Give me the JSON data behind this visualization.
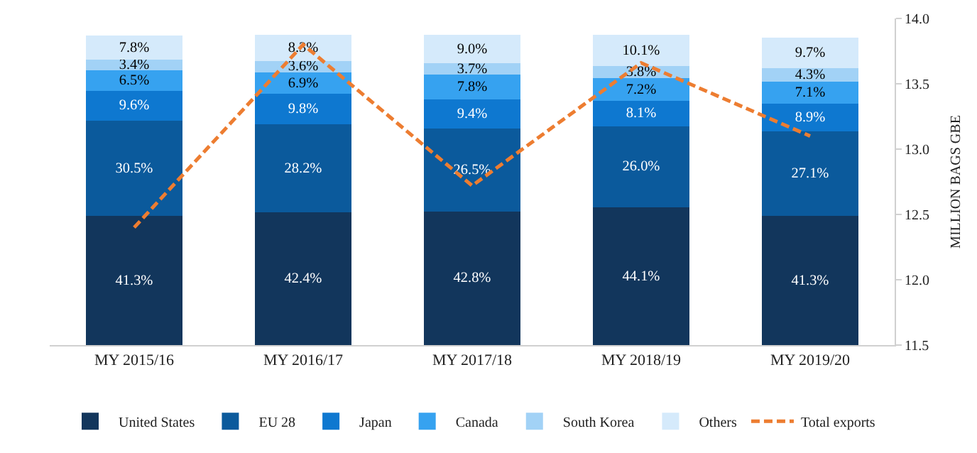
{
  "chart_data": {
    "type": "bar",
    "stacked": true,
    "y2label": "MILLION BAGS GBE",
    "categories": [
      "MY 2015/16",
      "MY 2016/17",
      "MY 2017/18",
      "MY 2018/19",
      "MY 2019/20"
    ],
    "series": [
      {
        "name": "United States",
        "color": "#12365c",
        "values": [
          41.3,
          42.4,
          42.8,
          44.1,
          41.3
        ],
        "value_labels": [
          "41.3%",
          "42.4%",
          "42.8%",
          "44.1%",
          "41.3%"
        ]
      },
      {
        "name": "EU 28",
        "color": "#0b5a9c",
        "values": [
          30.5,
          28.2,
          26.5,
          26.0,
          27.1
        ],
        "value_labels": [
          "30.5%",
          "28.2%",
          "26.5%",
          "26.0%",
          "27.1%"
        ]
      },
      {
        "name": "Japan",
        "color": "#0e78d0",
        "values": [
          9.6,
          9.8,
          9.4,
          8.1,
          8.9
        ],
        "value_labels": [
          "9.6%",
          "9.8%",
          "9.4%",
          "8.1%",
          "8.9%"
        ]
      },
      {
        "name": "Canada",
        "color": "#36a2f0",
        "values": [
          6.5,
          6.9,
          7.8,
          7.2,
          7.1
        ],
        "value_labels": [
          "6.5%",
          "6.9%",
          "7.8%",
          "7.2%",
          "7.1%"
        ]
      },
      {
        "name": "South Korea",
        "color": "#a2d2f6",
        "values": [
          3.4,
          3.6,
          3.7,
          3.8,
          4.3
        ],
        "value_labels": [
          "3.4%",
          "3.6%",
          "3.7%",
          "3.8%",
          "4.3%"
        ]
      },
      {
        "name": "Others",
        "color": "#d5eafb",
        "values": [
          7.8,
          8.3,
          9.0,
          10.1,
          9.7
        ],
        "value_labels": [
          "7.8%",
          "8.3%",
          "9.0%",
          "10.1%",
          "9.7%"
        ]
      },
      {
        "name": "Total exports",
        "type": "line",
        "axis": "y2",
        "color": "#ed7d31",
        "line_style": "dashed",
        "marker": "none",
        "values": [
          12.4,
          13.8,
          12.72,
          13.66,
          13.1
        ]
      }
    ],
    "y2lim": [
      11.5,
      14.0
    ],
    "y2ticks": [
      11.5,
      {
        "value": 12,
        "label": "12.0"
      },
      12.5,
      {
        "value": 13,
        "label": "13.0"
      },
      13.5,
      {
        "value": 14,
        "label": "14.0"
      }
    ],
    "legend": "bottom"
  }
}
